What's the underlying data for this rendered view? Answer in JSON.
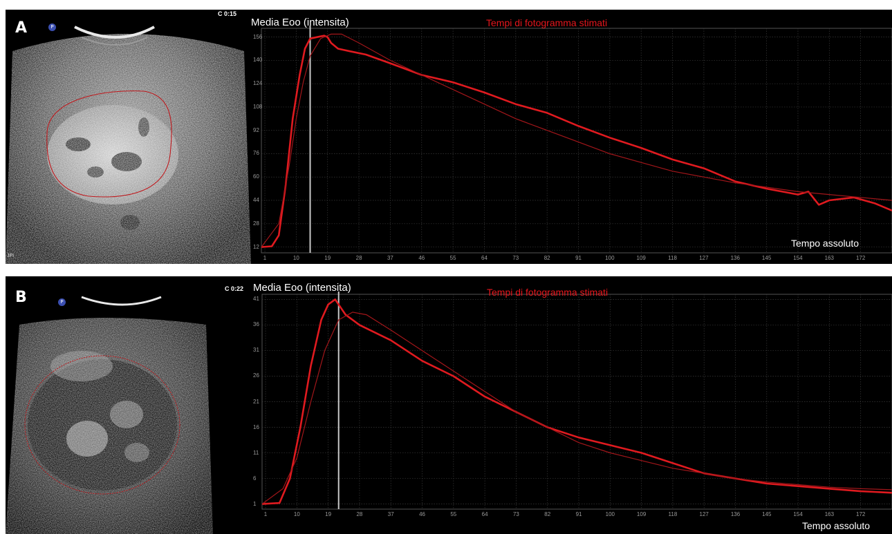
{
  "panels": {
    "a": {
      "label": "A",
      "timer": "C 0:15",
      "scanner_tag": "JPI"
    },
    "b": {
      "label": "B",
      "timer": "C 0:22"
    }
  },
  "colors": {
    "curve": "#e01a1f",
    "fit": "#a3161a",
    "marker": "#c9c9c9",
    "grid": "#3a3a3a",
    "title_red": "#e5161c",
    "axis_text": "#9a9a9a"
  },
  "chart_data": [
    {
      "type": "line",
      "title": "Tempi di fotogramma stimati",
      "ylabel": "Media Eoo (intensita)",
      "xlabel": "Tempo assoluto",
      "xlim": [
        0,
        181
      ],
      "ylim": [
        8,
        162
      ],
      "x_ticks": [
        1,
        10,
        19,
        28,
        37,
        46,
        55,
        64,
        73,
        82,
        91,
        100,
        109,
        118,
        127,
        136,
        145,
        154,
        163,
        172
      ],
      "y_ticks": [
        12,
        28,
        44,
        60,
        76,
        92,
        108,
        124,
        140,
        156
      ],
      "marker_x": 14,
      "grid": true,
      "series": [
        {
          "role": "measured",
          "points": [
            [
              0,
              12
            ],
            [
              3,
              12.5
            ],
            [
              5,
              20
            ],
            [
              7,
              55
            ],
            [
              9,
              100
            ],
            [
              11,
              130
            ],
            [
              12.5,
              148
            ],
            [
              14,
              155
            ],
            [
              16,
              156
            ],
            [
              18,
              157
            ],
            [
              19,
              156
            ],
            [
              20,
              152
            ],
            [
              22,
              148
            ],
            [
              26,
              146
            ],
            [
              30,
              144
            ],
            [
              37,
              138
            ],
            [
              46,
              130
            ],
            [
              55,
              125
            ],
            [
              64,
              118
            ],
            [
              73,
              110
            ],
            [
              82,
              104
            ],
            [
              91,
              95
            ],
            [
              100,
              87
            ],
            [
              109,
              80
            ],
            [
              118,
              72
            ],
            [
              127,
              66
            ],
            [
              136,
              57
            ],
            [
              145,
              52
            ],
            [
              154,
              48
            ],
            [
              157,
              50
            ],
            [
              160,
              41
            ],
            [
              163,
              44
            ],
            [
              170,
              46
            ],
            [
              176,
              42
            ],
            [
              181,
              37
            ]
          ]
        },
        {
          "role": "fitted",
          "points": [
            [
              0,
              12
            ],
            [
              5,
              28
            ],
            [
              8,
              68
            ],
            [
              10,
              100
            ],
            [
              12,
              125
            ],
            [
              14,
              143
            ],
            [
              17,
              155
            ],
            [
              20,
              158
            ],
            [
              23,
              158
            ],
            [
              28,
              152
            ],
            [
              37,
              140
            ],
            [
              46,
              130
            ],
            [
              55,
              120
            ],
            [
              64,
              110
            ],
            [
              73,
              100
            ],
            [
              82,
              92
            ],
            [
              91,
              84
            ],
            [
              100,
              76
            ],
            [
              109,
              70
            ],
            [
              118,
              64
            ],
            [
              127,
              60
            ],
            [
              136,
              56
            ],
            [
              145,
              53
            ],
            [
              154,
              50
            ],
            [
              163,
              48
            ],
            [
              172,
              46
            ],
            [
              181,
              44
            ]
          ]
        }
      ]
    },
    {
      "type": "line",
      "title": "Tempi di fotogramma stimati",
      "ylabel": "Media Eoo (intensita)",
      "xlabel": "Tempo assoluto",
      "xlim": [
        0,
        181
      ],
      "ylim": [
        0,
        42
      ],
      "x_ticks": [
        1,
        10,
        19,
        28,
        37,
        46,
        55,
        64,
        73,
        82,
        91,
        100,
        109,
        118,
        127,
        136,
        145,
        154,
        163,
        172
      ],
      "y_ticks": [
        1,
        6,
        11,
        16,
        21,
        26,
        31,
        36,
        41
      ],
      "marker_x": 22,
      "grid": true,
      "series": [
        {
          "role": "measured",
          "points": [
            [
              0,
              1
            ],
            [
              5,
              1.2
            ],
            [
              8,
              6
            ],
            [
              11,
              16
            ],
            [
              14,
              28
            ],
            [
              17,
              37
            ],
            [
              19,
              40
            ],
            [
              21,
              41
            ],
            [
              22,
              40
            ],
            [
              24,
              38
            ],
            [
              28,
              36
            ],
            [
              37,
              33
            ],
            [
              46,
              29
            ],
            [
              55,
              26
            ],
            [
              64,
              22
            ],
            [
              73,
              19
            ],
            [
              82,
              16
            ],
            [
              91,
              14
            ],
            [
              100,
              12.5
            ],
            [
              109,
              11
            ],
            [
              118,
              9
            ],
            [
              127,
              7
            ],
            [
              136,
              6
            ],
            [
              145,
              5
            ],
            [
              154,
              4.5
            ],
            [
              163,
              4
            ],
            [
              172,
              3.5
            ],
            [
              181,
              3.2
            ]
          ]
        },
        {
          "role": "fitted",
          "points": [
            [
              0,
              1
            ],
            [
              6,
              4
            ],
            [
              10,
              10
            ],
            [
              14,
              21
            ],
            [
              18,
              31
            ],
            [
              22,
              37
            ],
            [
              26,
              38.5
            ],
            [
              30,
              38
            ],
            [
              37,
              35
            ],
            [
              46,
              31
            ],
            [
              55,
              27
            ],
            [
              64,
              23
            ],
            [
              73,
              19
            ],
            [
              82,
              16
            ],
            [
              91,
              13
            ],
            [
              100,
              11
            ],
            [
              109,
              9.5
            ],
            [
              118,
              8
            ],
            [
              127,
              7
            ],
            [
              136,
              6
            ],
            [
              145,
              5.3
            ],
            [
              154,
              4.8
            ],
            [
              163,
              4.3
            ],
            [
              172,
              4
            ],
            [
              181,
              3.8
            ]
          ]
        }
      ]
    }
  ]
}
